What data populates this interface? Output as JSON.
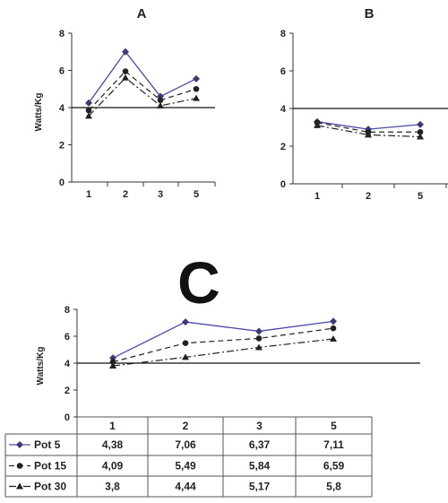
{
  "chart_data": [
    {
      "type": "line",
      "title": "A",
      "ylabel": "Watts/Kg",
      "categories": [
        "1",
        "2",
        "3",
        "5"
      ],
      "ylim": [
        0,
        8
      ],
      "yticks": [
        0,
        2,
        4,
        6,
        8
      ],
      "reference_line": 4,
      "series": [
        {
          "values": [
            4.25,
            7.0,
            4.6,
            5.55
          ],
          "style": "solid",
          "marker": "diamond",
          "color": "#4a4aa8"
        },
        {
          "values": [
            3.85,
            5.95,
            4.4,
            5.0
          ],
          "style": "dashed",
          "marker": "circle",
          "color": "#222222"
        },
        {
          "values": [
            3.55,
            5.6,
            4.1,
            4.5
          ],
          "style": "dashdot",
          "marker": "triangle",
          "color": "#222222"
        }
      ]
    },
    {
      "type": "line",
      "title": "B",
      "ylabel": "",
      "categories": [
        "1",
        "2",
        "5"
      ],
      "ylim": [
        0,
        8
      ],
      "yticks": [
        0,
        2,
        4,
        6,
        8
      ],
      "reference_line": 4,
      "series": [
        {
          "values": [
            3.3,
            2.9,
            3.15
          ],
          "style": "solid",
          "marker": "diamond",
          "color": "#4a4aa8"
        },
        {
          "values": [
            3.25,
            2.75,
            2.75
          ],
          "style": "dashed",
          "marker": "circle",
          "color": "#222222"
        },
        {
          "values": [
            3.1,
            2.6,
            2.5
          ],
          "style": "dashdot",
          "marker": "triangle",
          "color": "#222222"
        }
      ]
    },
    {
      "type": "line",
      "title": "C",
      "ylabel": "Watts/Kg",
      "categories": [
        "1",
        "2",
        "3",
        "5"
      ],
      "ylim": [
        0,
        8
      ],
      "yticks": [
        0,
        2,
        4,
        6,
        8
      ],
      "reference_line": 4,
      "series": [
        {
          "name": "Pot 5",
          "values": [
            "4,38",
            "7,06",
            "6,37",
            "7,11"
          ],
          "style": "solid",
          "marker": "diamond",
          "color": "#4a4aa8"
        },
        {
          "name": "Pot 15",
          "values": [
            "4,09",
            "5,49",
            "5,84",
            "6,59"
          ],
          "style": "dashed",
          "marker": "circle",
          "color": "#222222"
        },
        {
          "name": "Pot 30",
          "values": [
            "3,8",
            "4,44",
            "5,17",
            "5,8"
          ],
          "style": "dashdot",
          "marker": "triangle",
          "color": "#222222"
        }
      ]
    }
  ]
}
